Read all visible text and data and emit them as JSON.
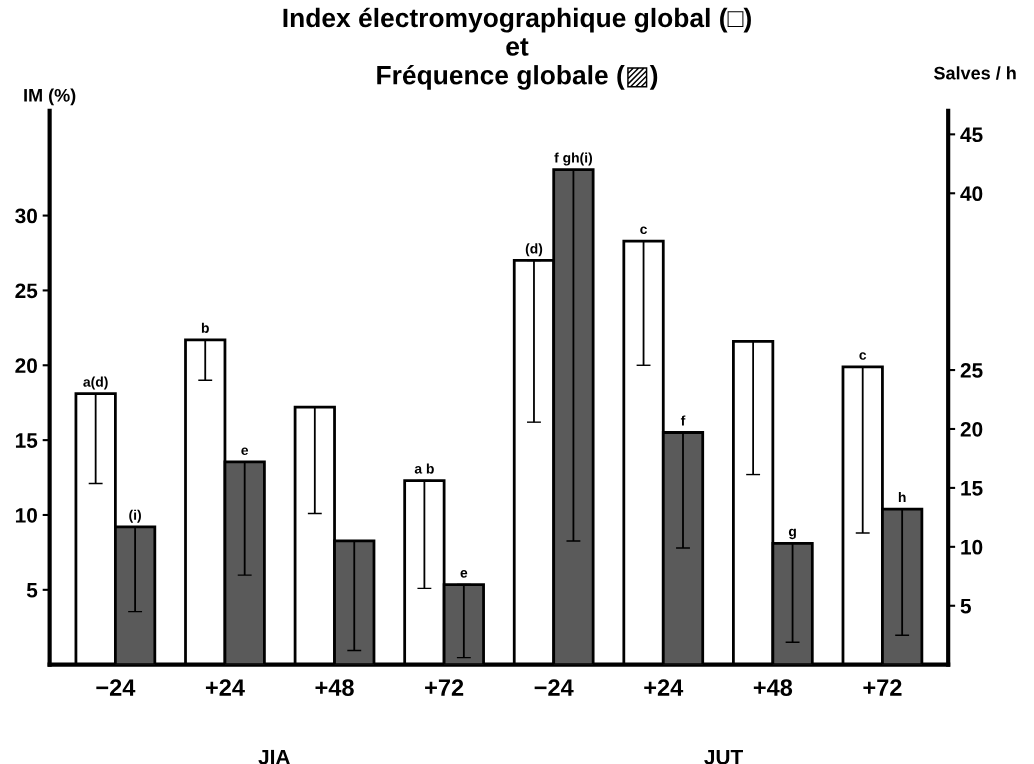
{
  "chart_data": {
    "type": "bar",
    "title": "Index électromyographique global (□)\net\nFréquence globale (▨)",
    "ylabel": "IM (%)",
    "y2label": "Salves / h",
    "annotations": [
      "JIA",
      "JUT"
    ],
    "categories": [
      "−24",
      "+24",
      "+48",
      "+72",
      "−24",
      "+24",
      "+48",
      "+72"
    ],
    "ylim": [
      0,
      37
    ],
    "yticks": [
      5,
      10,
      15,
      20,
      25,
      30
    ],
    "y2lim": [
      0,
      47
    ],
    "y2ticks": [
      5,
      10,
      15,
      20,
      25,
      40,
      45
    ],
    "series": [
      {
        "color": "#ffffff",
        "values": [
          18.1,
          21.7,
          17.2,
          12.3,
          27.0,
          28.3,
          21.6,
          19.9
        ],
        "errors": [
          [
            12.1,
            18.1
          ],
          [
            19.0,
            21.7
          ],
          [
            10.1,
            17.2
          ],
          [
            5.1,
            12.3
          ],
          [
            16.2,
            27.0
          ],
          [
            20.0,
            28.3
          ],
          [
            12.7,
            21.6
          ],
          [
            8.8,
            19.9
          ]
        ],
        "value_labels": [
          "a(d)",
          "b",
          null,
          "a b",
          "(d)",
          "c",
          null,
          "c"
        ]
      },
      {
        "color": "#5a5a5a",
        "axis": "y2",
        "values": [
          11.7,
          17.2,
          10.5,
          6.8,
          42.0,
          19.7,
          10.3,
          13.2
        ],
        "errors": [
          [
            4.5,
            11.7
          ],
          [
            7.6,
            17.2
          ],
          [
            1.2,
            10.5
          ],
          [
            0.6,
            6.8
          ],
          [
            10.5,
            42.0
          ],
          [
            9.9,
            19.7
          ],
          [
            1.9,
            10.3
          ],
          [
            2.5,
            13.2
          ]
        ],
        "value_labels": [
          "(i)",
          "e",
          null,
          "e",
          "f gh(i)",
          "f",
          "g",
          "h"
        ]
      }
    ]
  }
}
